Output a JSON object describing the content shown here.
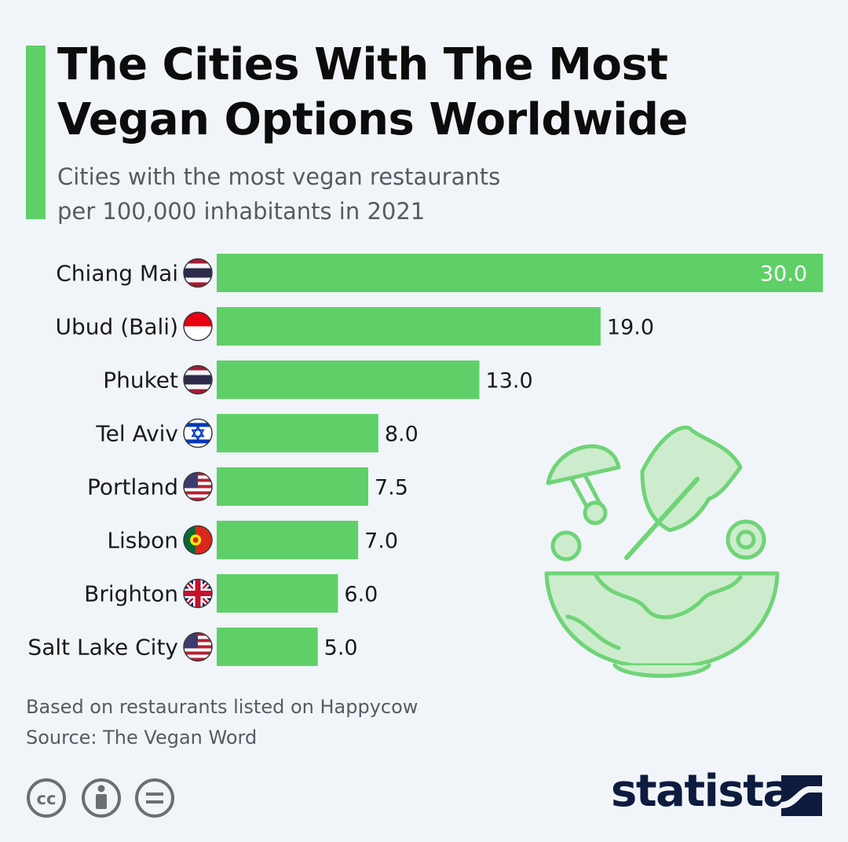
{
  "header": {
    "title": "The Cities With The Most Vegan Options Worldwide",
    "subtitle_line1": "Cities with the most vegan restaurants",
    "subtitle_line2": "per 100,000 inhabitants in 2021"
  },
  "colors": {
    "accent": "#5fd068",
    "bar": "#5fd068",
    "brand": "#0d1b3e"
  },
  "chart_data": {
    "type": "bar",
    "orientation": "horizontal",
    "categories": [
      "Chiang Mai",
      "Ubud (Bali)",
      "Phuket",
      "Tel Aviv",
      "Portland",
      "Lisbon",
      "Brighton",
      "Salt Lake City"
    ],
    "values": [
      30.0,
      19.0,
      13.0,
      8.0,
      7.5,
      7.0,
      6.0,
      5.0
    ],
    "value_labels": [
      "30.0",
      "19.0",
      "13.0",
      "8.0",
      "7.5",
      "7.0",
      "6.0",
      "5.0"
    ],
    "flags": [
      "thailand",
      "indonesia",
      "thailand",
      "israel",
      "usa",
      "portugal",
      "uk",
      "usa"
    ],
    "xlim": [
      0,
      30
    ],
    "grid": false
  },
  "footer": {
    "note": "Based on restaurants listed on Happycow",
    "source": "Source: The Vegan Word",
    "brand": "statista",
    "license_icons": [
      "cc-icon",
      "by-icon",
      "nd-icon"
    ]
  }
}
